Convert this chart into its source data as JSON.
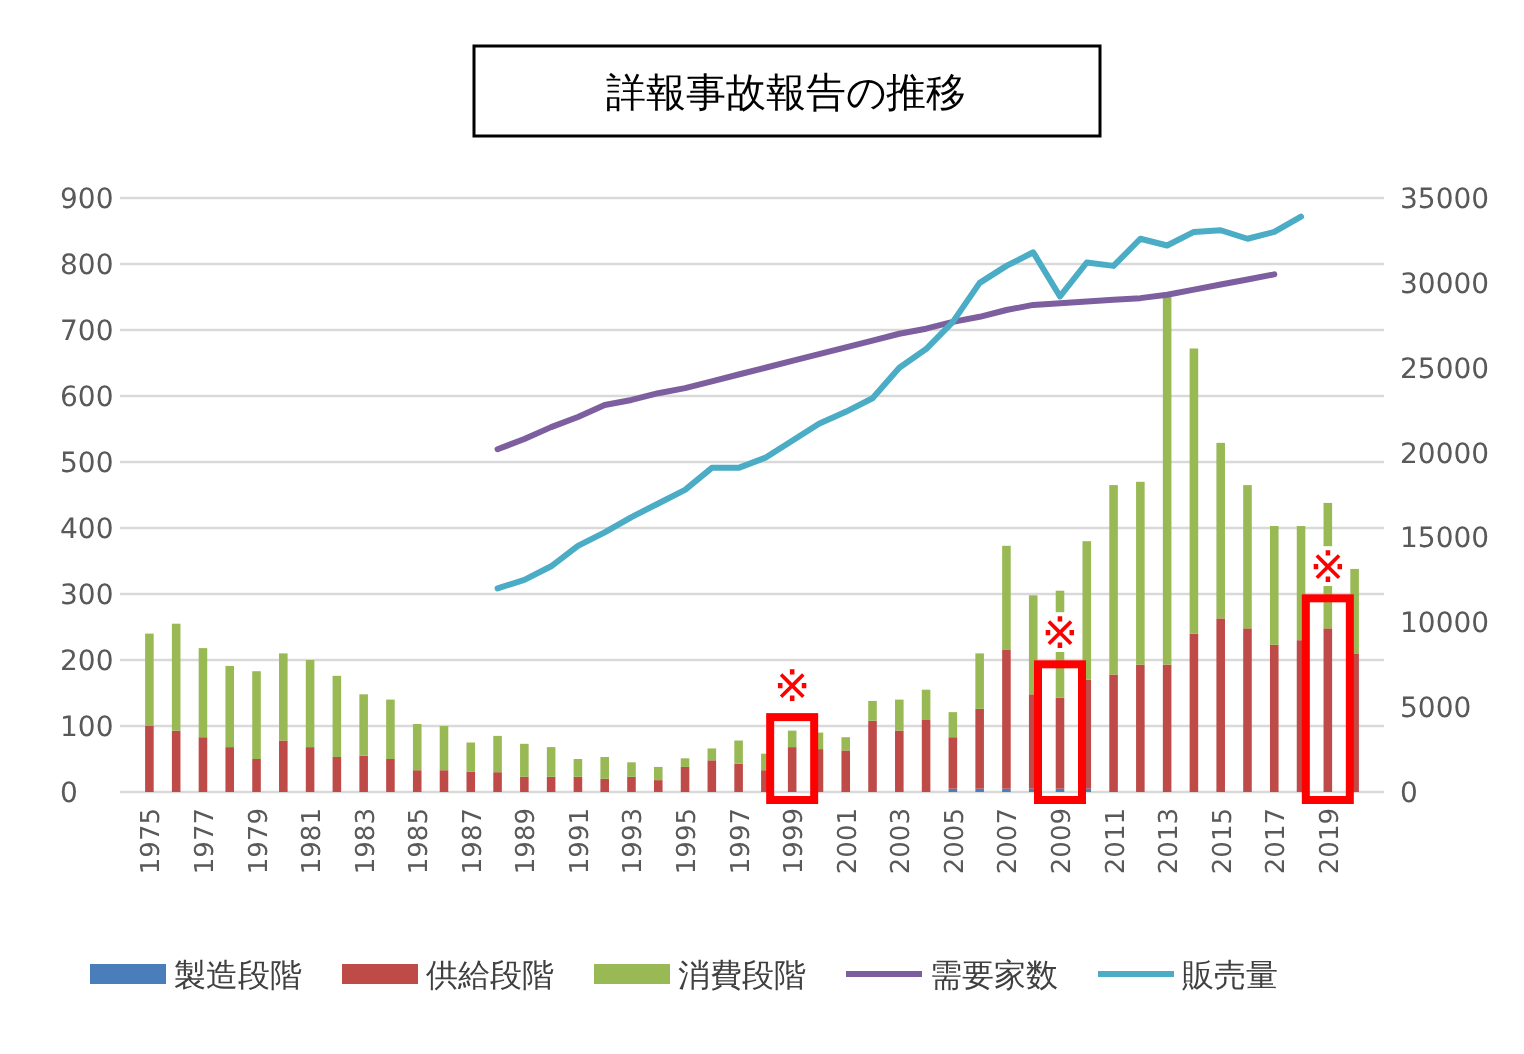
{
  "chart_data": {
    "type": "bar",
    "title": "詳報事故報告の推移",
    "stacked": true,
    "categories": [
      "1975",
      null,
      "1977",
      null,
      "1979",
      null,
      "1981",
      null,
      "1983",
      null,
      "1985",
      null,
      "1987",
      null,
      "1989",
      null,
      "1991",
      null,
      "1993",
      null,
      "1995",
      null,
      "1997",
      null,
      "1999",
      null,
      "2001",
      null,
      "2003",
      null,
      "2005",
      null,
      "2007",
      null,
      "2009",
      null,
      "2011",
      null,
      "2013",
      null,
      "2015",
      null,
      "2017",
      null,
      "2019",
      null
    ],
    "series": [
      {
        "name": "製造段階",
        "color": "#4a7ebb",
        "values": [
          0,
          0,
          0,
          0,
          0,
          0,
          0,
          0,
          0,
          0,
          0,
          0,
          0,
          0,
          0,
          0,
          0,
          0,
          0,
          0,
          0,
          0,
          0,
          0,
          0,
          0,
          0,
          0,
          0,
          0,
          5,
          5,
          5,
          5,
          5,
          5,
          0,
          0,
          0,
          0,
          0,
          0,
          0,
          0,
          0,
          0
        ]
      },
      {
        "name": "供給段階",
        "color": "#be4b48",
        "values": [
          100,
          93,
          83,
          68,
          50,
          78,
          68,
          53,
          55,
          50,
          33,
          33,
          31,
          30,
          23,
          23,
          23,
          20,
          23,
          18,
          38,
          48,
          43,
          33,
          68,
          65,
          63,
          108,
          93,
          110,
          78,
          121,
          211,
          143,
          138,
          165,
          178,
          193,
          193,
          240,
          263,
          248,
          223,
          230,
          248,
          210
        ]
      },
      {
        "name": "消費段階",
        "color": "#98b954",
        "values": [
          140,
          162,
          135,
          123,
          133,
          132,
          132,
          123,
          93,
          90,
          70,
          67,
          44,
          55,
          50,
          45,
          27,
          33,
          22,
          20,
          13,
          18,
          35,
          25,
          25,
          25,
          20,
          30,
          47,
          45,
          38,
          84,
          157,
          150,
          162,
          210,
          287,
          277,
          559,
          432,
          266,
          217,
          180,
          173,
          190,
          128
        ]
      },
      {
        "name": "需要家数",
        "type": "line",
        "axis": "y2",
        "color": "#7d5fa0",
        "values": [
          null,
          null,
          null,
          null,
          null,
          null,
          null,
          null,
          null,
          null,
          null,
          null,
          null,
          20200,
          20800,
          21500,
          22100,
          22800,
          23100,
          23500,
          23800,
          24200,
          24600,
          25000,
          25400,
          25800,
          26200,
          26600,
          27000,
          27300,
          27700,
          28000,
          28400,
          28700,
          28800,
          28900,
          29000,
          29100,
          29300,
          29600,
          29900,
          30200,
          30500,
          null,
          null,
          null
        ]
      },
      {
        "name": "販売量",
        "type": "line",
        "axis": "y2",
        "color": "#4bacc6",
        "values": [
          null,
          null,
          null,
          null,
          null,
          null,
          null,
          null,
          null,
          null,
          null,
          null,
          null,
          12000,
          12500,
          13300,
          14500,
          15300,
          16200,
          17000,
          17800,
          19100,
          19100,
          19700,
          20700,
          21700,
          22400,
          23200,
          25000,
          26100,
          27700,
          30000,
          31000,
          31800,
          29200,
          31200,
          31000,
          32600,
          32200,
          33000,
          33100,
          32600,
          33000,
          33900,
          null,
          null
        ]
      }
    ],
    "ylim": [
      0,
      900
    ],
    "yticks": [
      0,
      100,
      200,
      300,
      400,
      500,
      600,
      700,
      800,
      900
    ],
    "y2lim": [
      0,
      35000
    ],
    "y2ticks": [
      0,
      5000,
      10000,
      15000,
      20000,
      25000,
      30000,
      35000
    ],
    "grid": "y",
    "legend": "bottom",
    "annotations": [
      {
        "text": "※",
        "x": "1999",
        "y": 68
      },
      {
        "text": "※",
        "x": "2009",
        "y": 148
      },
      {
        "text": "※",
        "x": "2019",
        "y": 248
      }
    ]
  }
}
